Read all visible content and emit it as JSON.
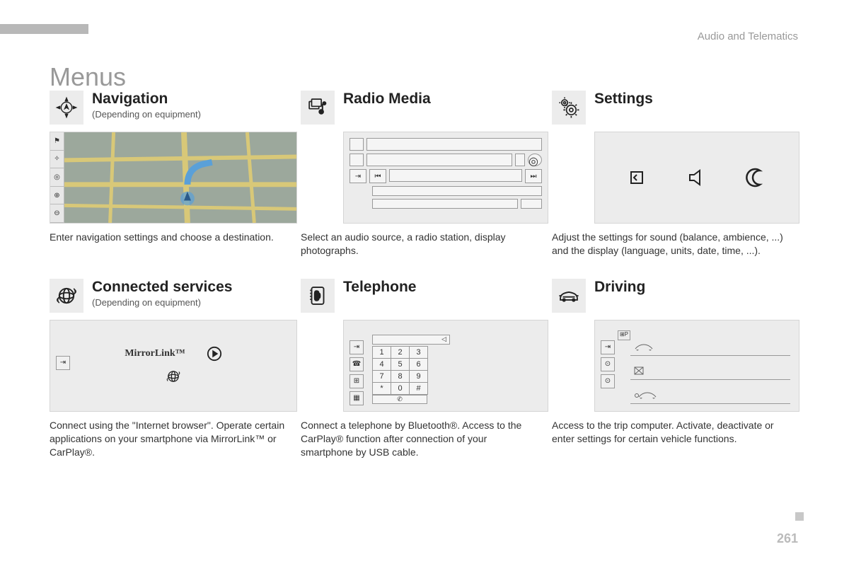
{
  "header": "Audio and Telematics",
  "page_title": "Menus",
  "page_number": "261",
  "menus": {
    "navigation": {
      "title": "Navigation",
      "subtitle": "(Depending on equipment)",
      "desc": "Enter navigation settings and choose a destination."
    },
    "radio": {
      "title": "Radio Media",
      "desc": "Select an audio source, a radio station, display photographs."
    },
    "settings": {
      "title": "Settings",
      "desc": "Adjust the settings for sound (balance, ambience, ...) and the display (language, units, date, time, ...)."
    },
    "connected": {
      "title": "Connected services",
      "subtitle": "(Depending on equipment)",
      "mirrorlink_label": "MirrorLink™",
      "desc": "Connect using the \"Internet browser\". Operate certain applications on your smartphone via MirrorLink™ or CarPlay®."
    },
    "telephone": {
      "title": "Telephone",
      "keys": [
        [
          "1",
          "2",
          "3"
        ],
        [
          "4",
          "5",
          "6"
        ],
        [
          "7",
          "8",
          "9"
        ],
        [
          "*",
          "0",
          "#"
        ]
      ],
      "desc": "Connect a telephone by Bluetooth®. Access to the CarPlay® function after connection of your smartphone by USB cable."
    },
    "driving": {
      "title": "Driving",
      "desc": "Access to the trip computer. Activate, deactivate or enter settings for certain vehicle functions."
    }
  },
  "colors": {
    "background": "#ffffff",
    "panel": "#ececec",
    "text": "#333333",
    "muted": "#999999",
    "border": "#b0b0b0"
  }
}
